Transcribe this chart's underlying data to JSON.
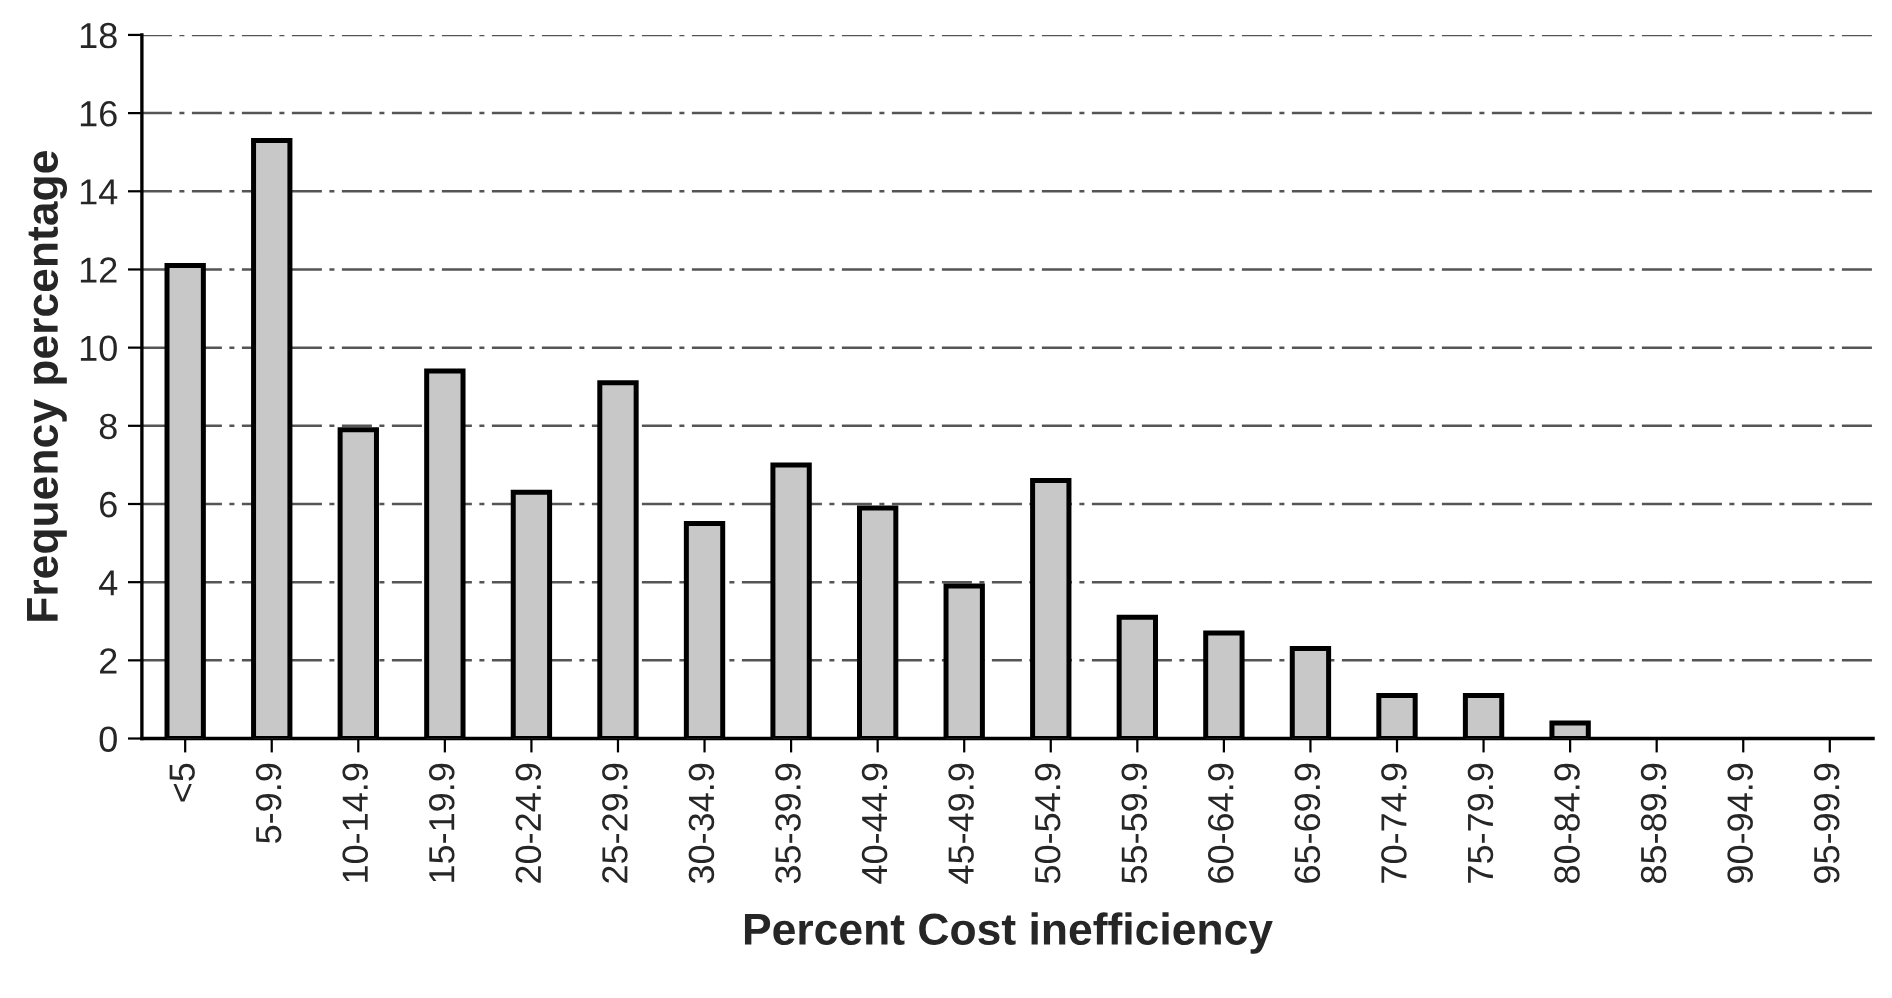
{
  "chart_data": {
    "type": "bar",
    "xlabel": "Percent Cost inefficiency",
    "ylabel": "Frequency percentage",
    "categories": [
      "<5",
      "5-9.9",
      "10-14.9",
      "15-19.9",
      "20-24.9",
      "25-29.9",
      "30-34.9",
      "35-39.9",
      "40-44.9",
      "45-49.9",
      "50-54.9",
      "55-59.9",
      "60-64.9",
      "65-69.9",
      "70-74.9",
      "75-79.9",
      "80-84.9",
      "85-89.9",
      "90-94.9",
      "95-99.9"
    ],
    "values": [
      12.1,
      15.3,
      7.9,
      9.4,
      6.3,
      9.1,
      5.5,
      7.0,
      5.9,
      3.9,
      6.6,
      3.1,
      2.7,
      2.3,
      1.1,
      1.1,
      0.4,
      0,
      0,
      0
    ],
    "color": "#c8c8c8",
    "ylim": [
      0,
      18
    ],
    "yticks": [
      0,
      2,
      4,
      6,
      8,
      10,
      12,
      14,
      16,
      18
    ],
    "grid": "y"
  }
}
